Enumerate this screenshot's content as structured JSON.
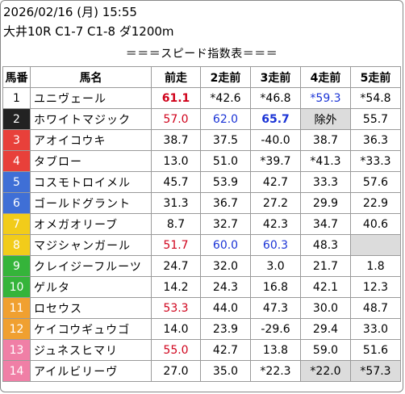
{
  "header": {
    "datetime": "2026/02/16 (月) 15:55",
    "race": "大井10R C1-7 C1-8 ダ1200m",
    "subtitle": "＝＝＝スピード指数表＝＝＝"
  },
  "columns": [
    "馬番",
    "馬名",
    "前走",
    "2走前",
    "3走前",
    "4走前",
    "5走前"
  ],
  "rows": [
    {
      "num": "1",
      "name": "ユニヴェール",
      "bg": "#ffffff",
      "fg": "#000000",
      "vals": [
        {
          "t": "61.1",
          "c": "red bold"
        },
        {
          "t": "*42.6"
        },
        {
          "t": "*46.8"
        },
        {
          "t": "*59.3",
          "c": "blue"
        },
        {
          "t": "*54.8"
        }
      ]
    },
    {
      "num": "2",
      "name": "ホワイトマジック",
      "bg": "#222222",
      "fg": "#ffffff",
      "vals": [
        {
          "t": "57.0",
          "c": "red"
        },
        {
          "t": "62.0",
          "c": "blue"
        },
        {
          "t": "65.7",
          "c": "blue bold"
        },
        {
          "t": "除外",
          "c": "gray"
        },
        {
          "t": "55.7"
        }
      ]
    },
    {
      "num": "3",
      "name": "アオイコウキ",
      "bg": "#e8403a",
      "fg": "#ffffff",
      "vals": [
        {
          "t": "38.7"
        },
        {
          "t": "37.5"
        },
        {
          "t": "-40.0"
        },
        {
          "t": "38.7"
        },
        {
          "t": "36.3"
        }
      ]
    },
    {
      "num": "4",
      "name": "タブロー",
      "bg": "#e8403a",
      "fg": "#ffffff",
      "vals": [
        {
          "t": "13.0"
        },
        {
          "t": "51.0"
        },
        {
          "t": "*39.7"
        },
        {
          "t": "*41.3"
        },
        {
          "t": "*33.3"
        }
      ]
    },
    {
      "num": "5",
      "name": "コスモトロイメル",
      "bg": "#3f6fd6",
      "fg": "#ffffff",
      "vals": [
        {
          "t": "45.7"
        },
        {
          "t": "53.9"
        },
        {
          "t": "42.7"
        },
        {
          "t": "33.3"
        },
        {
          "t": "57.6"
        }
      ]
    },
    {
      "num": "6",
      "name": "ゴールドグラント",
      "bg": "#3f6fd6",
      "fg": "#ffffff",
      "vals": [
        {
          "t": "31.3"
        },
        {
          "t": "36.7"
        },
        {
          "t": "27.2"
        },
        {
          "t": "29.9"
        },
        {
          "t": "22.9"
        }
      ]
    },
    {
      "num": "7",
      "name": "オメガオリーブ",
      "bg": "#f2cc1a",
      "fg": "#ffffff",
      "vals": [
        {
          "t": "8.7"
        },
        {
          "t": "32.7"
        },
        {
          "t": "42.3"
        },
        {
          "t": "34.7"
        },
        {
          "t": "40.6"
        }
      ]
    },
    {
      "num": "8",
      "name": "マジシャンガール",
      "bg": "#f2cc1a",
      "fg": "#ffffff",
      "vals": [
        {
          "t": "51.7",
          "c": "red"
        },
        {
          "t": "60.0",
          "c": "blue"
        },
        {
          "t": "60.3",
          "c": "blue"
        },
        {
          "t": "48.3"
        },
        {
          "t": "",
          "c": "gray"
        }
      ]
    },
    {
      "num": "9",
      "name": "クレイジーフルーツ",
      "bg": "#35b43a",
      "fg": "#ffffff",
      "vals": [
        {
          "t": "24.7"
        },
        {
          "t": "32.0"
        },
        {
          "t": "3.0"
        },
        {
          "t": "21.7"
        },
        {
          "t": "1.8"
        }
      ]
    },
    {
      "num": "10",
      "name": "ゲルタ",
      "bg": "#35b43a",
      "fg": "#ffffff",
      "vals": [
        {
          "t": "14.2"
        },
        {
          "t": "24.3"
        },
        {
          "t": "16.8"
        },
        {
          "t": "42.1"
        },
        {
          "t": "12.3"
        }
      ]
    },
    {
      "num": "11",
      "name": "ロセウス",
      "bg": "#f0a030",
      "fg": "#ffffff",
      "vals": [
        {
          "t": "53.3",
          "c": "red"
        },
        {
          "t": "44.0"
        },
        {
          "t": "47.3"
        },
        {
          "t": "30.0"
        },
        {
          "t": "48.7"
        }
      ]
    },
    {
      "num": "12",
      "name": "ケイコウギュウゴ",
      "bg": "#f0a030",
      "fg": "#ffffff",
      "vals": [
        {
          "t": "14.0"
        },
        {
          "t": "23.9"
        },
        {
          "t": "-29.6"
        },
        {
          "t": "29.4"
        },
        {
          "t": "33.0"
        }
      ]
    },
    {
      "num": "13",
      "name": "ジュネスヒマリ",
      "bg": "#f07fa6",
      "fg": "#ffffff",
      "vals": [
        {
          "t": "55.0",
          "c": "red"
        },
        {
          "t": "42.7"
        },
        {
          "t": "13.8"
        },
        {
          "t": "59.0"
        },
        {
          "t": "51.6"
        }
      ]
    },
    {
      "num": "14",
      "name": "アイルビリーヴ",
      "bg": "#f07fa6",
      "fg": "#ffffff",
      "vals": [
        {
          "t": "27.0"
        },
        {
          "t": "35.0"
        },
        {
          "t": "*22.3"
        },
        {
          "t": "*22.0",
          "c": "gray"
        },
        {
          "t": "*57.3",
          "c": "gray"
        }
      ]
    }
  ]
}
